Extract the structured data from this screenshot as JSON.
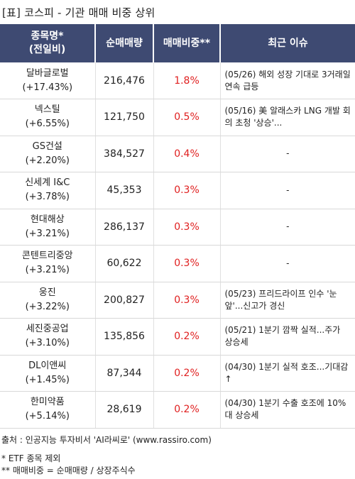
{
  "title": "[표] 코스피 - 기관 매매 비중 상위",
  "headers": {
    "name_line1": "종목명*",
    "name_line2": "(전일비)",
    "volume": "순매매량",
    "ratio": "매매비중**",
    "issue": "최근 이슈"
  },
  "rows": [
    {
      "name": "달바글로벌",
      "change": "(+17.43%)",
      "volume": "216,476",
      "ratio": "1.8%",
      "issue": "(05/26) 해외 성장 기대로 3거래일 연속 급등"
    },
    {
      "name": "넥스틸",
      "change": "(+6.55%)",
      "volume": "121,750",
      "ratio": "0.5%",
      "issue": "(05/16) 美 알래스카 LNG 개발 회의 초청 '상승'..."
    },
    {
      "name": "GS건설",
      "change": "(+2.20%)",
      "volume": "384,527",
      "ratio": "0.4%",
      "issue": "-"
    },
    {
      "name": "신세계 I&C",
      "change": "(+3.78%)",
      "volume": "45,353",
      "ratio": "0.3%",
      "issue": "-"
    },
    {
      "name": "현대해상",
      "change": "(+3.21%)",
      "volume": "286,137",
      "ratio": "0.3%",
      "issue": "-"
    },
    {
      "name": "콘텐트리중앙",
      "change": "(+3.21%)",
      "volume": "60,622",
      "ratio": "0.3%",
      "issue": "-"
    },
    {
      "name": "웅진",
      "change": "(+3.22%)",
      "volume": "200,827",
      "ratio": "0.3%",
      "issue": "(05/23) 프리드라이프 인수 '눈앞'...신고가 경신"
    },
    {
      "name": "세진중공업",
      "change": "(+3.10%)",
      "volume": "135,856",
      "ratio": "0.2%",
      "issue": "(05/21) 1분기 깜짝 실적...주가 상승세"
    },
    {
      "name": "DL이앤씨",
      "change": "(+1.45%)",
      "volume": "87,344",
      "ratio": "0.2%",
      "issue": "(04/30) 1분기 실적 호조...기대감↑"
    },
    {
      "name": "한미약품",
      "change": "(+5.14%)",
      "volume": "28,619",
      "ratio": "0.2%",
      "issue": "(04/30) 1분기 수출 호조에 10%대 상승세"
    }
  ],
  "footer": {
    "source": "출처 : 인공지능 투자비서 'AI라씨로' (www.rassiro.com)",
    "note1": "* ETF 종목 제외",
    "note2": "** 매매비중 = 순매매량 / 상장주식수"
  }
}
